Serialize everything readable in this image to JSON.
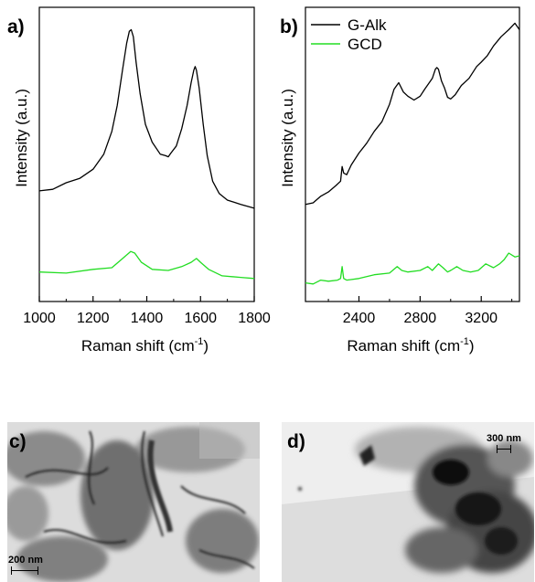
{
  "panels": {
    "a": {
      "label": "a)"
    },
    "b": {
      "label": "b)"
    },
    "c": {
      "label": "c)",
      "scale_bar": "200 nm"
    },
    "d": {
      "label": "d)",
      "scale_bar": "300 nm"
    }
  },
  "colors": {
    "g_alk": "#000000",
    "gcd": "#22dd22"
  },
  "chart_data": [
    {
      "type": "line",
      "panel": "a)",
      "xlabel": "Raman shift (cm",
      "xlabel_sup": "-1",
      "xlabel_tail": ")",
      "ylabel": "Intensity (a.u.)",
      "xlim": [
        1000,
        1800
      ],
      "ylim": [
        0,
        1
      ],
      "xticks": [
        1000,
        1200,
        1400,
        1600,
        1800
      ],
      "yticks_shown": false,
      "series": [
        {
          "name": "G-Alk",
          "color": "#000000",
          "x": [
            1000,
            1050,
            1100,
            1150,
            1200,
            1240,
            1270,
            1290,
            1310,
            1325,
            1335,
            1342,
            1350,
            1360,
            1375,
            1395,
            1420,
            1450,
            1470,
            1480,
            1490,
            1510,
            1530,
            1550,
            1565,
            1575,
            1580,
            1585,
            1595,
            1610,
            1625,
            1645,
            1670,
            1700,
            1750,
            1800
          ],
          "y": [
            0.38,
            0.39,
            0.41,
            0.43,
            0.46,
            0.52,
            0.6,
            0.7,
            0.83,
            0.93,
            0.97,
            0.98,
            0.95,
            0.86,
            0.74,
            0.63,
            0.56,
            0.52,
            0.51,
            0.51,
            0.52,
            0.55,
            0.61,
            0.7,
            0.78,
            0.83,
            0.84,
            0.83,
            0.76,
            0.63,
            0.51,
            0.42,
            0.37,
            0.35,
            0.33,
            0.32
          ]
        },
        {
          "name": "GCD",
          "color": "#22dd22",
          "x": [
            1000,
            1100,
            1200,
            1270,
            1310,
            1340,
            1355,
            1380,
            1420,
            1480,
            1530,
            1565,
            1585,
            1600,
            1630,
            1680,
            1750,
            1800
          ],
          "y": [
            0.08,
            0.08,
            0.09,
            0.1,
            0.13,
            0.16,
            0.15,
            0.12,
            0.09,
            0.09,
            0.1,
            0.12,
            0.13,
            0.12,
            0.09,
            0.07,
            0.06,
            0.06
          ]
        }
      ]
    },
    {
      "type": "line",
      "panel": "b)",
      "xlabel": "Raman shift (cm",
      "xlabel_sup": "-1",
      "xlabel_tail": ")",
      "ylabel": "Intensity (a.u.)",
      "xlim": [
        2050,
        3450
      ],
      "ylim": [
        0,
        1
      ],
      "xticks": [
        2400,
        2800,
        3200
      ],
      "yticks_shown": false,
      "legend": {
        "position": "top-left",
        "entries": [
          "G-Alk",
          "GCD"
        ]
      },
      "series": [
        {
          "name": "G-Alk",
          "color": "#000000",
          "x": [
            2050,
            2100,
            2150,
            2200,
            2250,
            2280,
            2290,
            2300,
            2320,
            2350,
            2400,
            2450,
            2500,
            2550,
            2600,
            2630,
            2660,
            2690,
            2720,
            2760,
            2800,
            2830,
            2860,
            2880,
            2900,
            2910,
            2920,
            2940,
            2960,
            2980,
            3000,
            3030,
            3070,
            3120,
            3170,
            3200,
            3240,
            3280,
            3330,
            3380,
            3420,
            3450
          ],
          "y": [
            0.33,
            0.34,
            0.36,
            0.38,
            0.4,
            0.42,
            0.47,
            0.45,
            0.44,
            0.48,
            0.52,
            0.56,
            0.6,
            0.64,
            0.7,
            0.76,
            0.78,
            0.75,
            0.73,
            0.72,
            0.73,
            0.76,
            0.78,
            0.8,
            0.83,
            0.84,
            0.83,
            0.79,
            0.76,
            0.73,
            0.72,
            0.74,
            0.77,
            0.8,
            0.84,
            0.86,
            0.88,
            0.92,
            0.95,
            0.98,
            1.0,
            0.98
          ]
        },
        {
          "name": "GCD",
          "color": "#22dd22",
          "x": [
            2050,
            2100,
            2150,
            2200,
            2260,
            2280,
            2290,
            2300,
            2320,
            2400,
            2500,
            2600,
            2650,
            2680,
            2720,
            2800,
            2850,
            2880,
            2920,
            2950,
            2980,
            3000,
            3040,
            3080,
            3130,
            3180,
            3230,
            3280,
            3320,
            3350,
            3380,
            3420,
            3450
          ],
          "y": [
            0.04,
            0.04,
            0.05,
            0.05,
            0.05,
            0.06,
            0.1,
            0.06,
            0.05,
            0.06,
            0.07,
            0.08,
            0.1,
            0.09,
            0.08,
            0.09,
            0.1,
            0.09,
            0.11,
            0.1,
            0.08,
            0.09,
            0.1,
            0.09,
            0.08,
            0.09,
            0.11,
            0.1,
            0.11,
            0.13,
            0.15,
            0.14,
            0.14
          ]
        }
      ]
    }
  ]
}
